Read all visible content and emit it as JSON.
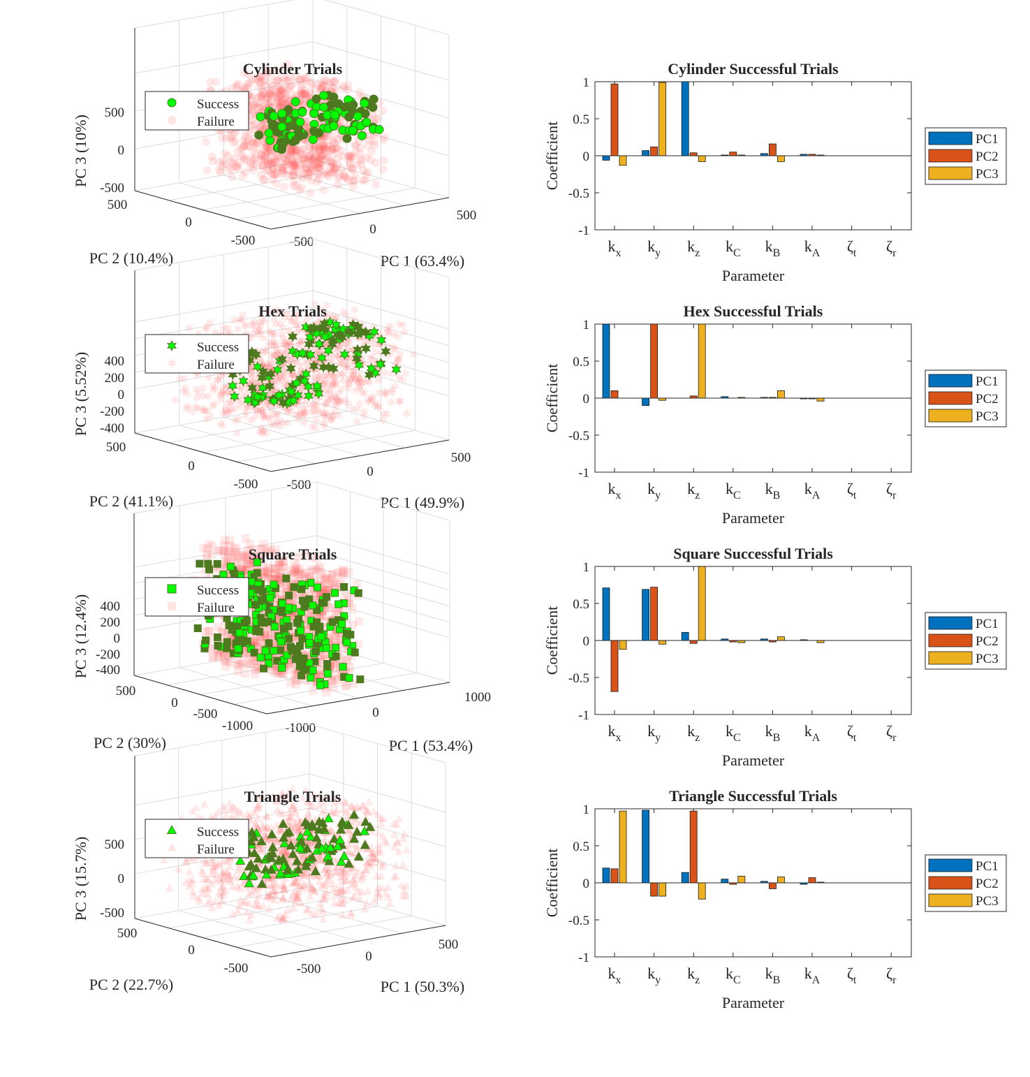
{
  "chart_data": [
    {
      "type": "scatter3d",
      "title": "Cylinder Trials",
      "xlabel": "PC 1 (63.4%)",
      "ylabel": "PC 2 (10.4%)",
      "zlabel": "PC 3 (10%)",
      "x_ticks": [
        "-500",
        "0",
        "500"
      ],
      "y_ticks": [
        "-500",
        "0",
        "500"
      ],
      "z_ticks": [
        "-500",
        "0",
        "500"
      ],
      "xlim": [
        -700,
        700
      ],
      "ylim": [
        -700,
        700
      ],
      "zlim": [
        -600,
        700
      ],
      "marker": "circle",
      "legend_position": "top-left",
      "series": [
        {
          "name": "Success",
          "color": "#00ff00",
          "edge_color": "#4d7a1f",
          "cluster": {
            "x_range": [
              -450,
              300
            ],
            "y_range": [
              -60,
              60
            ],
            "z_range": [
              -150,
              50
            ],
            "count": 120
          }
        },
        {
          "name": "Failure",
          "color": "#ff4d4d",
          "cluster": {
            "x_range": [
              -650,
              650
            ],
            "y_range": [
              -650,
              650
            ],
            "z_range": [
              -550,
              550
            ],
            "count": 1500
          }
        }
      ]
    },
    {
      "type": "bar",
      "title": "Cylinder Successful Trials",
      "xlabel": "Parameter",
      "ylabel": "Coefficient",
      "categories": [
        "k_x",
        "k_y",
        "k_z",
        "k_C",
        "k_B",
        "k_A",
        "ζ_t",
        "ζ_r"
      ],
      "ylim": [
        -1,
        1
      ],
      "y_ticks": [
        "-1",
        "-0.5",
        "0",
        "0.5",
        "1"
      ],
      "legend_position": "right",
      "series": [
        {
          "name": "PC1",
          "color": "#0072bd",
          "values": [
            -0.06,
            0.07,
            1.0,
            0.01,
            0.03,
            0.02,
            0.0,
            0.0
          ]
        },
        {
          "name": "PC2",
          "color": "#d95319",
          "values": [
            0.97,
            0.12,
            0.04,
            0.05,
            0.16,
            0.02,
            0.0,
            0.0
          ]
        },
        {
          "name": "PC3",
          "color": "#edb120",
          "values": [
            -0.13,
            0.99,
            -0.08,
            0.01,
            -0.08,
            0.01,
            0.0,
            0.0
          ]
        }
      ]
    },
    {
      "type": "scatter3d",
      "title": "Hex Trials",
      "xlabel": "PC 1 (49.9%)",
      "ylabel": "PC 2 (41.1%)",
      "zlabel": "PC 3 (5.52%)",
      "x_ticks": [
        "-500",
        "0",
        "500"
      ],
      "y_ticks": [
        "-500",
        "0",
        "500"
      ],
      "z_ticks": [
        "-400",
        "-200",
        "0",
        "200",
        "400"
      ],
      "xlim": [
        -700,
        700
      ],
      "ylim": [
        -700,
        700
      ],
      "zlim": [
        -450,
        450
      ],
      "marker": "hexagram",
      "legend_position": "top-left",
      "series": [
        {
          "name": "Success",
          "color": "#00ff00",
          "edge_color": "#4d7a1f",
          "cluster": {
            "x_range": [
              -650,
              650
            ],
            "y_range": [
              -150,
              150
            ],
            "z_range": [
              -250,
              250
            ],
            "count": 140
          }
        },
        {
          "name": "Failure",
          "color": "#ff4d4d",
          "cluster": {
            "x_range": [
              -650,
              650
            ],
            "y_range": [
              -650,
              650
            ],
            "z_range": [
              -420,
              420
            ],
            "count": 1500
          }
        }
      ]
    },
    {
      "type": "bar",
      "title": "Hex Successful Trials",
      "xlabel": "Parameter",
      "ylabel": "Coefficient",
      "categories": [
        "k_x",
        "k_y",
        "k_z",
        "k_C",
        "k_B",
        "k_A",
        "ζ_t",
        "ζ_r"
      ],
      "ylim": [
        -1,
        1
      ],
      "y_ticks": [
        "-1",
        "-0.5",
        "0",
        "0.5",
        "1"
      ],
      "legend_position": "right",
      "series": [
        {
          "name": "PC1",
          "color": "#0072bd",
          "values": [
            1.0,
            -0.1,
            0.0,
            0.02,
            0.01,
            -0.01,
            0.0,
            0.0
          ]
        },
        {
          "name": "PC2",
          "color": "#d95319",
          "values": [
            0.1,
            1.0,
            0.03,
            0.0,
            0.01,
            -0.01,
            0.0,
            0.0
          ]
        },
        {
          "name": "PC3",
          "color": "#edb120",
          "values": [
            0.0,
            -0.03,
            1.0,
            0.01,
            0.1,
            -0.04,
            0.0,
            0.0
          ]
        }
      ]
    },
    {
      "type": "scatter3d",
      "title": "Square Trials",
      "xlabel": "PC 1 (53.4%)",
      "ylabel": "PC 2 (30%)",
      "zlabel": "PC 3 (12.4%)",
      "x_ticks": [
        "-1000",
        "0",
        "1000"
      ],
      "y_ticks": [
        "-1000",
        "-500",
        "0",
        "500"
      ],
      "z_ticks": [
        "-400",
        "-200",
        "0",
        "200",
        "400"
      ],
      "xlim": [
        -1300,
        1300
      ],
      "ylim": [
        -1200,
        800
      ],
      "zlim": [
        -500,
        500
      ],
      "marker": "square",
      "legend_position": "top-left",
      "series": [
        {
          "name": "Success",
          "color": "#00ff00",
          "edge_color": "#4d7a1f",
          "cluster": {
            "x_range": [
              -600,
              150
            ],
            "y_range": [
              -650,
              650
            ],
            "z_range": [
              -380,
              320
            ],
            "count": 260
          }
        },
        {
          "name": "Failure",
          "color": "#ff4d4d",
          "cluster": {
            "x_range": [
              -600,
              150
            ],
            "y_range": [
              -650,
              650
            ],
            "z_range": [
              -450,
              450
            ],
            "count": 1200
          }
        }
      ]
    },
    {
      "type": "bar",
      "title": "Square Successful Trials",
      "xlabel": "Parameter",
      "ylabel": "Coefficient",
      "categories": [
        "k_x",
        "k_y",
        "k_z",
        "k_C",
        "k_B",
        "k_A",
        "ζ_t",
        "ζ_r"
      ],
      "ylim": [
        -1,
        1
      ],
      "y_ticks": [
        "-1",
        "-0.5",
        "0",
        "0.5",
        "1"
      ],
      "legend_position": "right",
      "series": [
        {
          "name": "PC1",
          "color": "#0072bd",
          "values": [
            0.71,
            0.69,
            0.11,
            0.02,
            0.02,
            0.01,
            0.0,
            0.0
          ]
        },
        {
          "name": "PC2",
          "color": "#d95319",
          "values": [
            -0.69,
            0.72,
            -0.04,
            -0.02,
            -0.02,
            0.0,
            0.0,
            0.0
          ]
        },
        {
          "name": "PC3",
          "color": "#edb120",
          "values": [
            -0.12,
            -0.05,
            1.0,
            -0.03,
            0.05,
            -0.03,
            0.0,
            0.0
          ]
        }
      ]
    },
    {
      "type": "scatter3d",
      "title": "Triangle Trials",
      "xlabel": "PC 1 (50.3%)",
      "ylabel": "PC 2 (22.7%)",
      "zlabel": "PC 3 (15.7%)",
      "x_ticks": [
        "-500",
        "0",
        "500"
      ],
      "y_ticks": [
        "-500",
        "0",
        "500"
      ],
      "z_ticks": [
        "-500",
        "0",
        "500"
      ],
      "xlim": [
        -700,
        700
      ],
      "ylim": [
        -700,
        700
      ],
      "zlim": [
        -600,
        700
      ],
      "marker": "triangle",
      "legend_position": "top-left",
      "series": [
        {
          "name": "Success",
          "color": "#00ff00",
          "edge_color": "#4d7a1f",
          "cluster": {
            "x_range": [
              -450,
              500
            ],
            "y_range": [
              -80,
              80
            ],
            "z_range": [
              -200,
              50
            ],
            "count": 110
          }
        },
        {
          "name": "Failure",
          "color": "#ff4d4d",
          "cluster": {
            "x_range": [
              -650,
              650
            ],
            "y_range": [
              -650,
              650
            ],
            "z_range": [
              -550,
              550
            ],
            "count": 1500
          }
        }
      ]
    },
    {
      "type": "bar",
      "title": "Triangle Successful Trials",
      "xlabel": "Parameter",
      "ylabel": "Coefficient",
      "categories": [
        "k_x",
        "k_y",
        "k_z",
        "k_C",
        "k_B",
        "k_A",
        "ζ_t",
        "ζ_r"
      ],
      "ylim": [
        -1,
        1
      ],
      "y_ticks": [
        "-1",
        "-0.5",
        "0",
        "0.5",
        "1"
      ],
      "legend_position": "right",
      "series": [
        {
          "name": "PC1",
          "color": "#0072bd",
          "values": [
            0.2,
            0.98,
            0.14,
            0.05,
            0.02,
            -0.02,
            0.0,
            0.0
          ]
        },
        {
          "name": "PC2",
          "color": "#d95319",
          "values": [
            0.19,
            -0.18,
            0.97,
            -0.02,
            -0.08,
            0.07,
            0.0,
            0.0
          ]
        },
        {
          "name": "PC3",
          "color": "#edb120",
          "values": [
            0.97,
            -0.18,
            -0.22,
            0.09,
            0.08,
            0.01,
            0.0,
            0.0
          ]
        }
      ]
    }
  ]
}
